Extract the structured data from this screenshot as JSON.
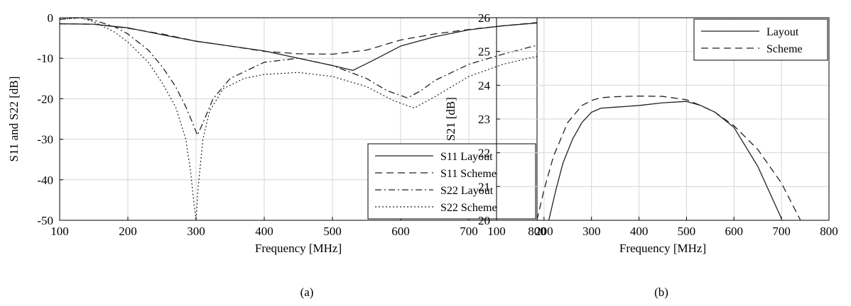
{
  "chart_data": [
    {
      "type": "line",
      "caption": "(a)",
      "xlabel": "Frequency [MHz]",
      "ylabel": "S11 and S22 [dB]",
      "xlim": [
        100,
        800
      ],
      "ylim": [
        -50,
        0
      ],
      "xticks": [
        100,
        200,
        300,
        400,
        500,
        600,
        700,
        800
      ],
      "yticks": [
        0,
        -10,
        -20,
        -30,
        -40,
        -50
      ],
      "grid": true,
      "legend_position": "bottom-right",
      "series": [
        {
          "name": "S11 Layout",
          "style": "solid",
          "x": [
            100,
            150,
            200,
            250,
            300,
            350,
            400,
            450,
            500,
            530,
            560,
            600,
            650,
            700,
            750,
            800
          ],
          "y": [
            -1.5,
            -1.6,
            -2.5,
            -4.2,
            -5.8,
            -7.0,
            -8.2,
            -10.0,
            -11.8,
            -13.0,
            -10.5,
            -7.0,
            -4.7,
            -3.0,
            -2.0,
            -1.3
          ]
        },
        {
          "name": "S11 Scheme",
          "style": "dashed",
          "x": [
            100,
            150,
            200,
            250,
            300,
            350,
            400,
            450,
            500,
            550,
            600,
            650,
            700,
            750,
            800
          ],
          "y": [
            -1.5,
            -1.6,
            -2.6,
            -4.0,
            -5.8,
            -7.0,
            -8.3,
            -8.9,
            -9.0,
            -8.0,
            -5.5,
            -4.0,
            -2.9,
            -2.0,
            -1.2
          ]
        },
        {
          "name": "S22 Layout",
          "style": "dashdot",
          "x": [
            100,
            130,
            150,
            180,
            200,
            230,
            250,
            270,
            285,
            295,
            302,
            310,
            325,
            350,
            400,
            450,
            500,
            550,
            580,
            610,
            630,
            650,
            700,
            750,
            800
          ],
          "y": [
            -0.4,
            0.0,
            -0.6,
            -2.2,
            -4.0,
            -8.0,
            -12.0,
            -17.0,
            -22.0,
            -26.0,
            -29.0,
            -26.0,
            -20.0,
            -15.0,
            -11.0,
            -10.0,
            -11.8,
            -15.0,
            -18.0,
            -19.8,
            -18.0,
            -15.5,
            -11.5,
            -9.0,
            -6.8
          ]
        },
        {
          "name": "S22 Scheme",
          "style": "dotted",
          "x": [
            100,
            130,
            150,
            180,
            200,
            230,
            250,
            270,
            285,
            292,
            297,
            300,
            303,
            310,
            320,
            340,
            370,
            400,
            450,
            500,
            550,
            590,
            620,
            650,
            700,
            750,
            800
          ],
          "y": [
            -0.4,
            0.0,
            -1.0,
            -3.5,
            -6.0,
            -11.0,
            -16.0,
            -22.0,
            -30.0,
            -38.0,
            -46.0,
            -50.0,
            -42.0,
            -30.0,
            -23.0,
            -17.5,
            -15.0,
            -14.0,
            -13.5,
            -14.5,
            -17.0,
            -20.5,
            -22.3,
            -19.5,
            -14.5,
            -11.5,
            -9.5
          ]
        }
      ]
    },
    {
      "type": "line",
      "caption": "(b)",
      "xlabel": "Frequency [MHz]",
      "ylabel": "S21 [dB]",
      "xlim": [
        100,
        800
      ],
      "ylim": [
        20,
        26
      ],
      "xticks": [
        100,
        200,
        300,
        400,
        500,
        600,
        700,
        800
      ],
      "yticks": [
        26,
        25,
        24,
        23,
        22,
        21,
        20
      ],
      "grid": true,
      "legend_position": "top-right",
      "series": [
        {
          "name": "Layout",
          "style": "solid",
          "x": [
            210,
            225,
            240,
            260,
            280,
            300,
            320,
            350,
            400,
            450,
            500,
            530,
            560,
            600,
            650,
            700
          ],
          "y": [
            20.0,
            20.9,
            21.7,
            22.4,
            22.9,
            23.2,
            23.32,
            23.35,
            23.4,
            23.48,
            23.52,
            23.4,
            23.2,
            22.75,
            21.6,
            20.05
          ]
        },
        {
          "name": "Scheme",
          "style": "dashed",
          "x": [
            185,
            200,
            220,
            250,
            280,
            300,
            320,
            350,
            400,
            450,
            500,
            530,
            560,
            600,
            650,
            700,
            740
          ],
          "y": [
            20.0,
            20.9,
            21.9,
            22.9,
            23.4,
            23.55,
            23.63,
            23.66,
            23.68,
            23.67,
            23.57,
            23.4,
            23.2,
            22.8,
            22.1,
            21.1,
            20.0
          ]
        }
      ]
    }
  ]
}
